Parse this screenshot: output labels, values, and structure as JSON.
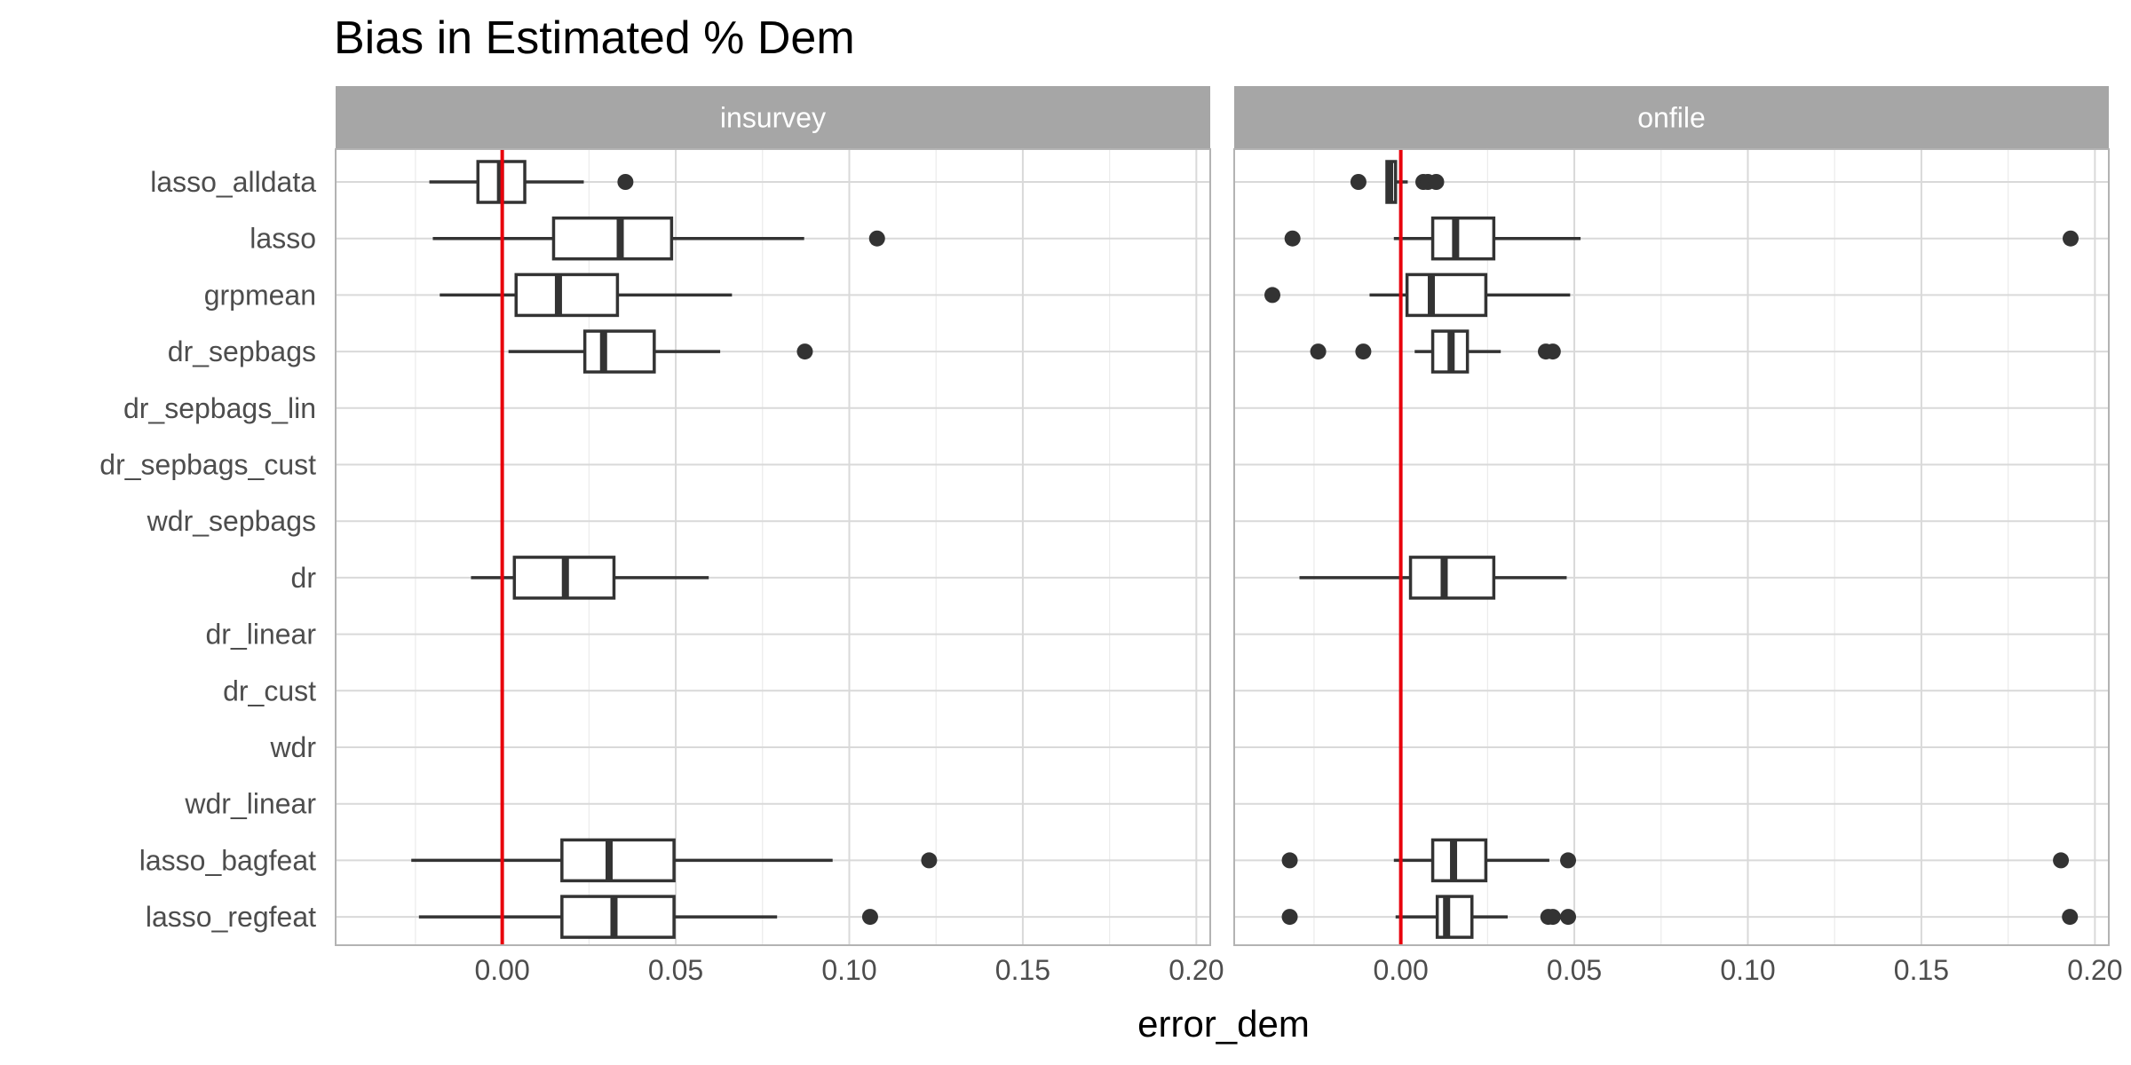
{
  "chart_data": {
    "type": "boxplot",
    "title": "Bias in Estimated % Dem",
    "xlabel": "error_dem",
    "ylabel": "",
    "xlim": [
      -0.048,
      0.204
    ],
    "x_ticks": [
      0.0,
      0.05,
      0.1,
      0.15,
      0.2
    ],
    "x_tick_labels": [
      "0.00",
      "0.05",
      "0.10",
      "0.15",
      "0.20"
    ],
    "reference_line": {
      "x": 0.0,
      "color": "#e8000b"
    },
    "grid": true,
    "categories": [
      "lasso_alldata",
      "lasso",
      "grpmean",
      "dr_sepbags",
      "dr_sepbags_lin",
      "dr_sepbags_cust",
      "wdr_sepbags",
      "dr",
      "dr_linear",
      "dr_cust",
      "wdr",
      "wdr_linear",
      "lasso_bagfeat",
      "lasso_regfeat"
    ],
    "panels": [
      {
        "name": "insurvey",
        "boxes": [
          {
            "category": "lasso_alldata",
            "whisker_low": -0.021,
            "q1": -0.007,
            "median": -0.0005,
            "q3": 0.0065,
            "whisker_high": 0.0235,
            "outliers": [
              0.0355
            ]
          },
          {
            "category": "lasso",
            "whisker_low": -0.02,
            "q1": 0.0148,
            "median": 0.034,
            "q3": 0.0488,
            "whisker_high": 0.087,
            "outliers": [
              0.108
            ]
          },
          {
            "category": "grpmean",
            "whisker_low": -0.018,
            "q1": 0.004,
            "median": 0.0162,
            "q3": 0.0332,
            "whisker_high": 0.0662,
            "outliers": []
          },
          {
            "category": "dr_sepbags",
            "whisker_low": 0.0018,
            "q1": 0.0238,
            "median": 0.0292,
            "q3": 0.0438,
            "whisker_high": 0.0628,
            "outliers": [
              0.0872
            ]
          },
          {
            "category": "dr",
            "whisker_low": -0.009,
            "q1": 0.0035,
            "median": 0.0182,
            "q3": 0.0322,
            "whisker_high": 0.0595,
            "outliers": []
          },
          {
            "category": "lasso_bagfeat",
            "whisker_low": -0.0262,
            "q1": 0.0172,
            "median": 0.0308,
            "q3": 0.0495,
            "whisker_high": 0.0952,
            "outliers": [
              0.123
            ]
          },
          {
            "category": "lasso_regfeat",
            "whisker_low": -0.024,
            "q1": 0.0172,
            "median": 0.0322,
            "q3": 0.0495,
            "whisker_high": 0.0792,
            "outliers": [
              0.106
            ]
          }
        ]
      },
      {
        "name": "onfile",
        "boxes": [
          {
            "category": "lasso_alldata",
            "whisker_low": -0.004,
            "q1": -0.004,
            "median": -0.0032,
            "q3": -0.0015,
            "whisker_high": 0.002,
            "outliers": [
              -0.0122,
              0.0065,
              0.0078,
              0.0102
            ]
          },
          {
            "category": "lasso",
            "whisker_low": -0.002,
            "q1": 0.0092,
            "median": 0.0158,
            "q3": 0.0268,
            "whisker_high": 0.0518,
            "outliers": [
              -0.0312,
              0.193
            ]
          },
          {
            "category": "grpmean",
            "whisker_low": -0.009,
            "q1": 0.0018,
            "median": 0.0088,
            "q3": 0.0245,
            "whisker_high": 0.0488,
            "outliers": [
              -0.037
            ]
          },
          {
            "category": "dr_sepbags",
            "whisker_low": 0.004,
            "q1": 0.0092,
            "median": 0.0145,
            "q3": 0.0192,
            "whisker_high": 0.0288,
            "outliers": [
              -0.0238,
              -0.0108,
              0.0418,
              0.0438
            ]
          },
          {
            "category": "dr",
            "whisker_low": -0.0292,
            "q1": 0.0028,
            "median": 0.0125,
            "q3": 0.0268,
            "whisker_high": 0.0478,
            "outliers": []
          },
          {
            "category": "lasso_bagfeat",
            "whisker_low": -0.002,
            "q1": 0.0092,
            "median": 0.0152,
            "q3": 0.0245,
            "whisker_high": 0.0428,
            "outliers": [
              -0.032,
              0.0482,
              0.1902
            ]
          },
          {
            "category": "lasso_regfeat",
            "whisker_low": -0.0015,
            "q1": 0.0105,
            "median": 0.0132,
            "q3": 0.0205,
            "whisker_high": 0.0308,
            "outliers": [
              -0.032,
              0.0425,
              0.0438,
              0.0482,
              0.1928
            ]
          }
        ]
      }
    ]
  }
}
